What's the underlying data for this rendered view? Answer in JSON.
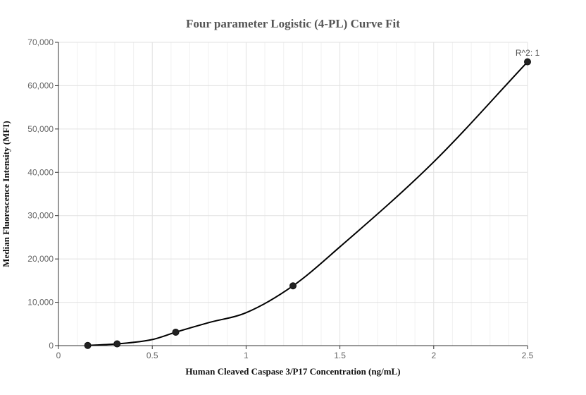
{
  "chart_data": {
    "type": "scatter",
    "title": "Four parameter Logistic (4-PL) Curve Fit",
    "xlabel": "Human Cleaved Caspase 3/P17 Concentration (ng/mL)",
    "ylabel": "Median Fluorescence Intensity (MFI)",
    "xlim": [
      0,
      2.5
    ],
    "ylim": [
      0,
      70000
    ],
    "x_ticks": [
      0,
      0.5,
      1,
      1.5,
      2,
      2.5
    ],
    "x_tick_labels": [
      "0",
      "0.5",
      "1",
      "1.5",
      "2",
      "2.5"
    ],
    "y_ticks": [
      0,
      10000,
      20000,
      30000,
      40000,
      50000,
      60000,
      70000
    ],
    "y_tick_labels": [
      "0",
      "10,000",
      "20,000",
      "30,000",
      "40,000",
      "50,000",
      "60,000",
      "70,000"
    ],
    "grid": true,
    "series": [
      {
        "type": "scatter",
        "x": [
          0.156,
          0.3125,
          0.625,
          1.25,
          2.5
        ],
        "y": [
          50,
          400,
          3100,
          13800,
          65500
        ],
        "color": "#222222"
      },
      {
        "type": "line",
        "x": [
          0.156,
          0.3125,
          0.5,
          0.625,
          0.8,
          1.0,
          1.25,
          1.5,
          2.0,
          2.5
        ],
        "y": [
          50,
          400,
          1400,
          3100,
          5300,
          7600,
          13800,
          22800,
          42400,
          65500
        ],
        "color": "#000000"
      }
    ],
    "annotations": [
      {
        "text": "R^2: 1",
        "x": 2.5,
        "y": 65500
      }
    ]
  }
}
